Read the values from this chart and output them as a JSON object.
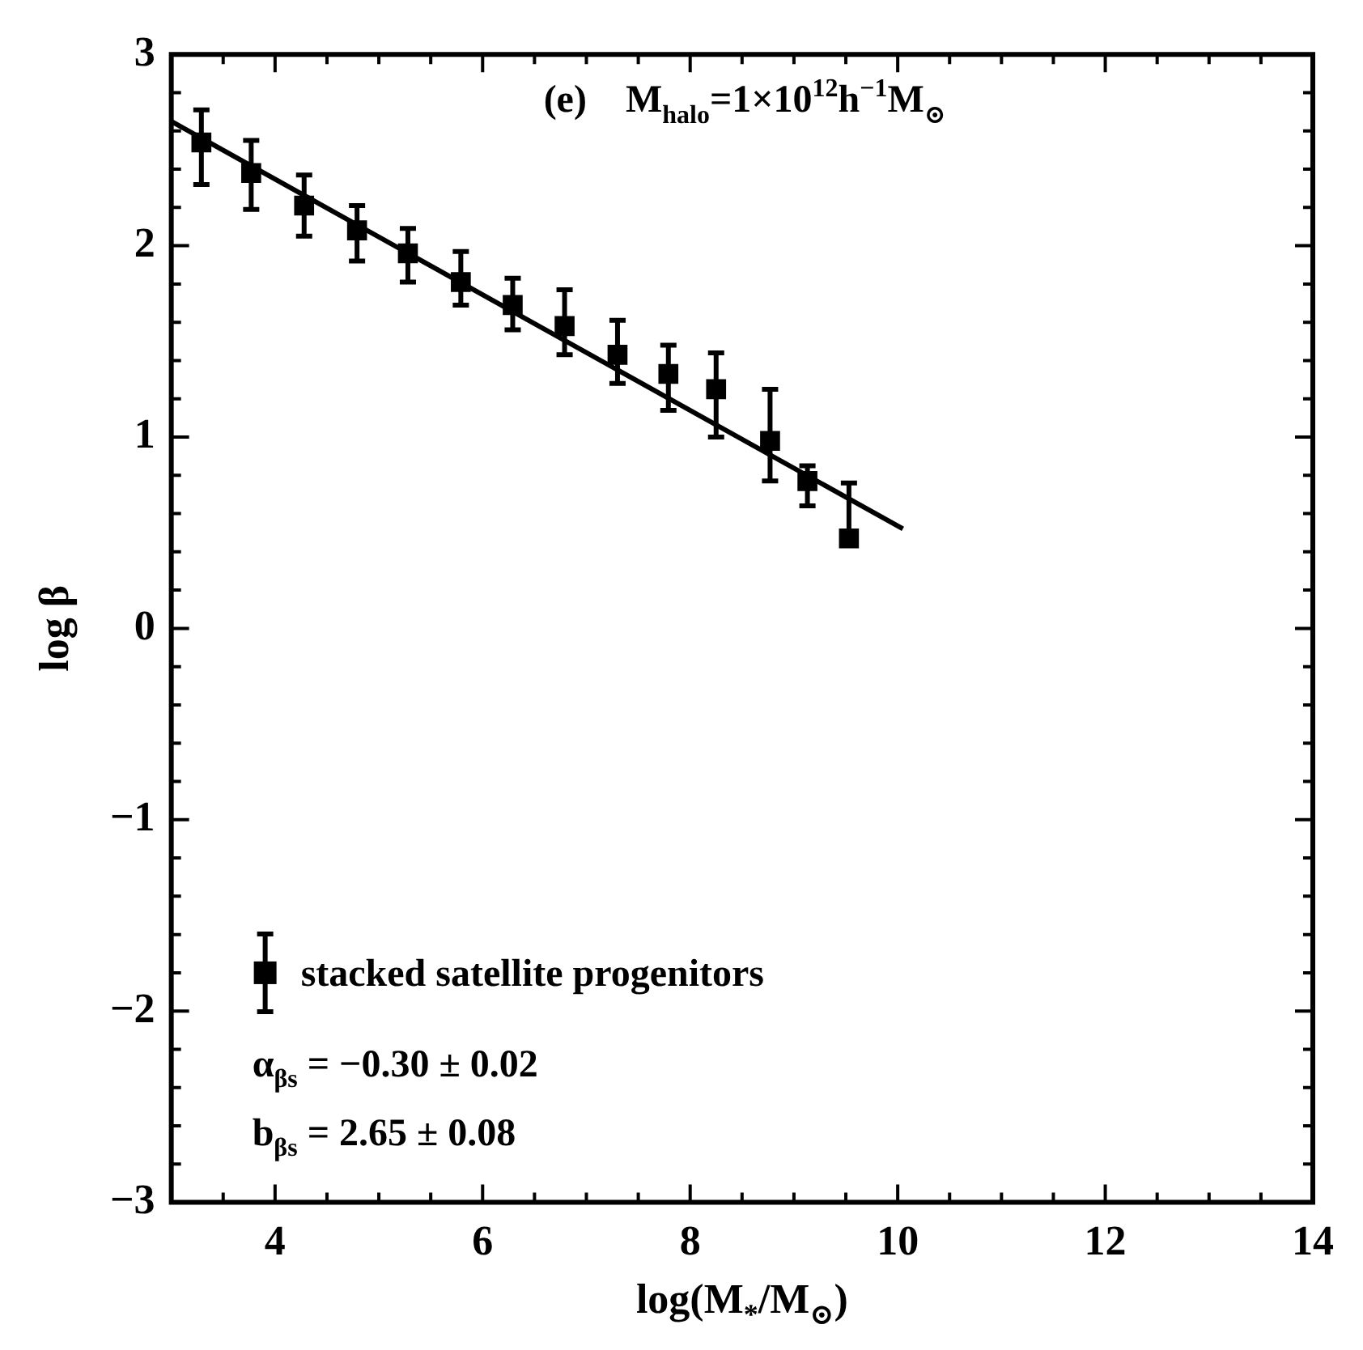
{
  "chart_data": {
    "type": "scatter",
    "xlabel": "log(M$_{*}$/M$_{⊙}$)",
    "ylabel": "log β",
    "xlim": [
      3,
      14
    ],
    "ylim": [
      -3,
      3
    ],
    "xticks": [
      {
        "value": 3.5,
        "label": null
      },
      4,
      {
        "value": 4.5,
        "label": null
      },
      {
        "value": 5,
        "label": null
      },
      {
        "value": 5.5,
        "label": null
      },
      6,
      {
        "value": 6.5,
        "label": null
      },
      {
        "value": 7,
        "label": null
      },
      {
        "value": 7.5,
        "label": null
      },
      8,
      {
        "value": 8.5,
        "label": null
      },
      {
        "value": 9,
        "label": null
      },
      {
        "value": 9.5,
        "label": null
      },
      10,
      {
        "value": 10.5,
        "label": null
      },
      {
        "value": 11,
        "label": null
      },
      {
        "value": 11.5,
        "label": null
      },
      12,
      {
        "value": 12.5,
        "label": null
      },
      {
        "value": 13,
        "label": null
      },
      {
        "value": 13.5,
        "label": null
      },
      14
    ],
    "yticks": [
      {
        "value": -3,
        "label": "−3"
      },
      {
        "value": -2.8,
        "label": null
      },
      {
        "value": -2.6,
        "label": null
      },
      {
        "value": -2.4,
        "label": null
      },
      {
        "value": -2.2,
        "label": null
      },
      {
        "value": -2,
        "label": "−2"
      },
      {
        "value": -1.8,
        "label": null
      },
      {
        "value": -1.6,
        "label": null
      },
      {
        "value": -1.4,
        "label": null
      },
      {
        "value": -1.2,
        "label": null
      },
      {
        "value": -1,
        "label": "−1"
      },
      {
        "value": -0.8,
        "label": null
      },
      {
        "value": -0.6,
        "label": null
      },
      {
        "value": -0.4,
        "label": null
      },
      {
        "value": -0.2,
        "label": null
      },
      0,
      {
        "value": 0.2,
        "label": null
      },
      {
        "value": 0.4,
        "label": null
      },
      {
        "value": 0.6,
        "label": null
      },
      {
        "value": 0.8,
        "label": null
      },
      1,
      {
        "value": 1.2,
        "label": null
      },
      {
        "value": 1.4,
        "label": null
      },
      {
        "value": 1.6,
        "label": null
      },
      {
        "value": 1.8,
        "label": null
      },
      2,
      {
        "value": 2.2,
        "label": null
      },
      {
        "value": 2.4,
        "label": null
      },
      {
        "value": 2.6,
        "label": null
      },
      {
        "value": 2.8,
        "label": null
      },
      3
    ],
    "legend": "bottom left",
    "series": [
      {
        "name": "stacked satellite progenitors",
        "marker": "square",
        "color": "#000000",
        "x": [
          3.29,
          3.77,
          4.28,
          4.79,
          5.28,
          5.79,
          6.29,
          6.79,
          7.3,
          7.79,
          8.25,
          8.77,
          9.13,
          9.53
        ],
        "values": [
          2.54,
          2.38,
          2.21,
          2.08,
          1.96,
          1.81,
          1.69,
          1.58,
          1.43,
          1.33,
          1.25,
          0.98,
          0.77,
          0.47
        ],
        "errors": [
          [
            2.32,
            2.71
          ],
          [
            2.19,
            2.55
          ],
          [
            2.05,
            2.37
          ],
          [
            1.92,
            2.21
          ],
          [
            1.81,
            2.09
          ],
          [
            1.69,
            1.97
          ],
          [
            1.56,
            1.83
          ],
          [
            1.43,
            1.77
          ],
          [
            1.28,
            1.61
          ],
          [
            1.14,
            1.48
          ],
          [
            1.0,
            1.44
          ],
          [
            0.77,
            1.25
          ],
          [
            0.64,
            0.85
          ],
          [
            0.47,
            0.76
          ]
        ]
      },
      {
        "type": "line",
        "color": "#000000",
        "marker": "none",
        "line_style": "solid",
        "x": [
          3,
          10.05
        ],
        "values": [
          2.65,
          0.52
        ]
      }
    ],
    "annotations": [
      "(e)    M$_{halo}$=1×10$^{12}$h$^{−1}$M$_{⊙}$",
      "α$_{βs}$ = −0.30 ± 0.02",
      "b$_{βs}$ = 2.65 ± 0.08"
    ]
  }
}
